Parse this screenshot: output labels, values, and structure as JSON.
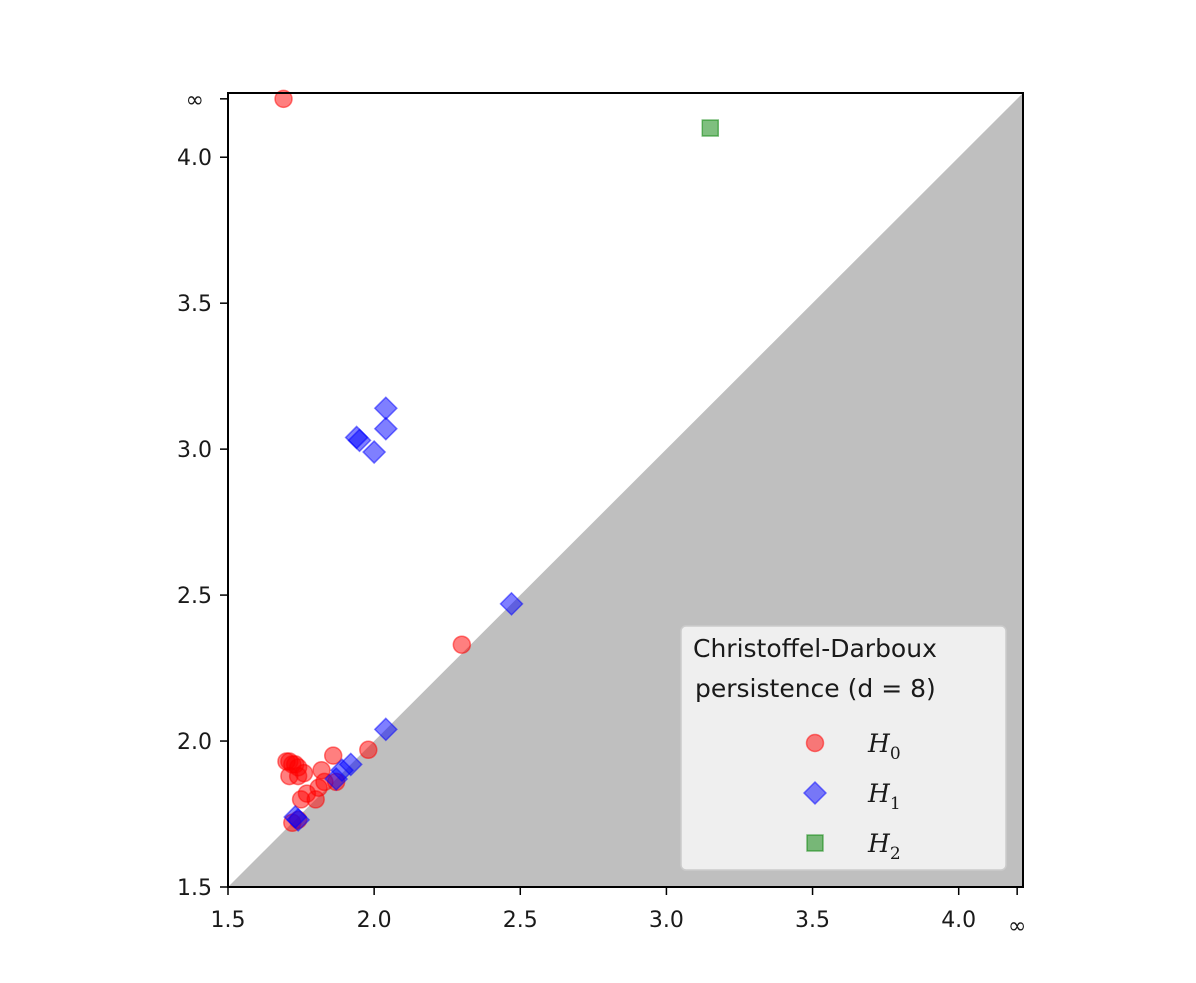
{
  "chart_data": {
    "type": "scatter",
    "title": "",
    "xlabel": "",
    "ylabel": "",
    "xlim": [
      1.5,
      4.22
    ],
    "ylim": [
      1.5,
      4.22
    ],
    "infinity_value": 4.2,
    "x_ticks": [
      {
        "value": 1.5,
        "label": "1.5"
      },
      {
        "value": 2.0,
        "label": "2.0"
      },
      {
        "value": 2.5,
        "label": "2.5"
      },
      {
        "value": 3.0,
        "label": "3.0"
      },
      {
        "value": 3.5,
        "label": "3.5"
      },
      {
        "value": 4.0,
        "label": "4.0"
      },
      {
        "value": 4.2,
        "label": "∞"
      }
    ],
    "y_ticks": [
      {
        "value": 1.5,
        "label": "1.5"
      },
      {
        "value": 2.0,
        "label": "2.0"
      },
      {
        "value": 2.5,
        "label": "2.5"
      },
      {
        "value": 3.0,
        "label": "3.0"
      },
      {
        "value": 3.5,
        "label": "3.5"
      },
      {
        "value": 4.0,
        "label": "4.0"
      },
      {
        "value": 4.2,
        "label": "∞"
      }
    ],
    "diagonal_fill_color": "#bfbfbf",
    "legend": {
      "position": "lower right",
      "title_line1": "Christoffel-Darboux",
      "title_line2": "persistence (d = 8)",
      "background": "#f2f2f2"
    },
    "series": [
      {
        "name": "H0",
        "name_base": "H",
        "name_sub": "0",
        "marker": "circle",
        "color": "#ff0000",
        "points": [
          [
            1.69,
            4.2
          ],
          [
            1.7,
            1.93
          ],
          [
            1.71,
            1.93
          ],
          [
            1.72,
            1.92
          ],
          [
            1.73,
            1.92
          ],
          [
            1.74,
            1.91
          ],
          [
            1.71,
            1.88
          ],
          [
            1.74,
            1.88
          ],
          [
            1.76,
            1.89
          ],
          [
            1.82,
            1.9
          ],
          [
            1.86,
            1.95
          ],
          [
            1.98,
            1.97
          ],
          [
            1.75,
            1.8
          ],
          [
            1.77,
            1.82
          ],
          [
            1.8,
            1.8
          ],
          [
            1.81,
            1.84
          ],
          [
            1.83,
            1.86
          ],
          [
            1.87,
            1.86
          ],
          [
            1.72,
            1.72
          ],
          [
            1.74,
            1.73
          ],
          [
            2.3,
            2.33
          ]
        ]
      },
      {
        "name": "H1",
        "name_base": "H",
        "name_sub": "1",
        "marker": "diamond",
        "color": "#0000ff",
        "points": [
          [
            2.04,
            3.14
          ],
          [
            2.04,
            3.07
          ],
          [
            1.94,
            3.04
          ],
          [
            1.95,
            3.03
          ],
          [
            2.0,
            2.99
          ],
          [
            2.47,
            2.47
          ],
          [
            2.04,
            2.04
          ],
          [
            1.92,
            1.92
          ],
          [
            1.89,
            1.9
          ],
          [
            1.87,
            1.87
          ],
          [
            1.73,
            1.74
          ],
          [
            1.74,
            1.73
          ]
        ]
      },
      {
        "name": "H2",
        "name_base": "H",
        "name_sub": "2",
        "marker": "square",
        "color": "#008000",
        "points": [
          [
            3.15,
            4.1
          ]
        ]
      }
    ]
  }
}
